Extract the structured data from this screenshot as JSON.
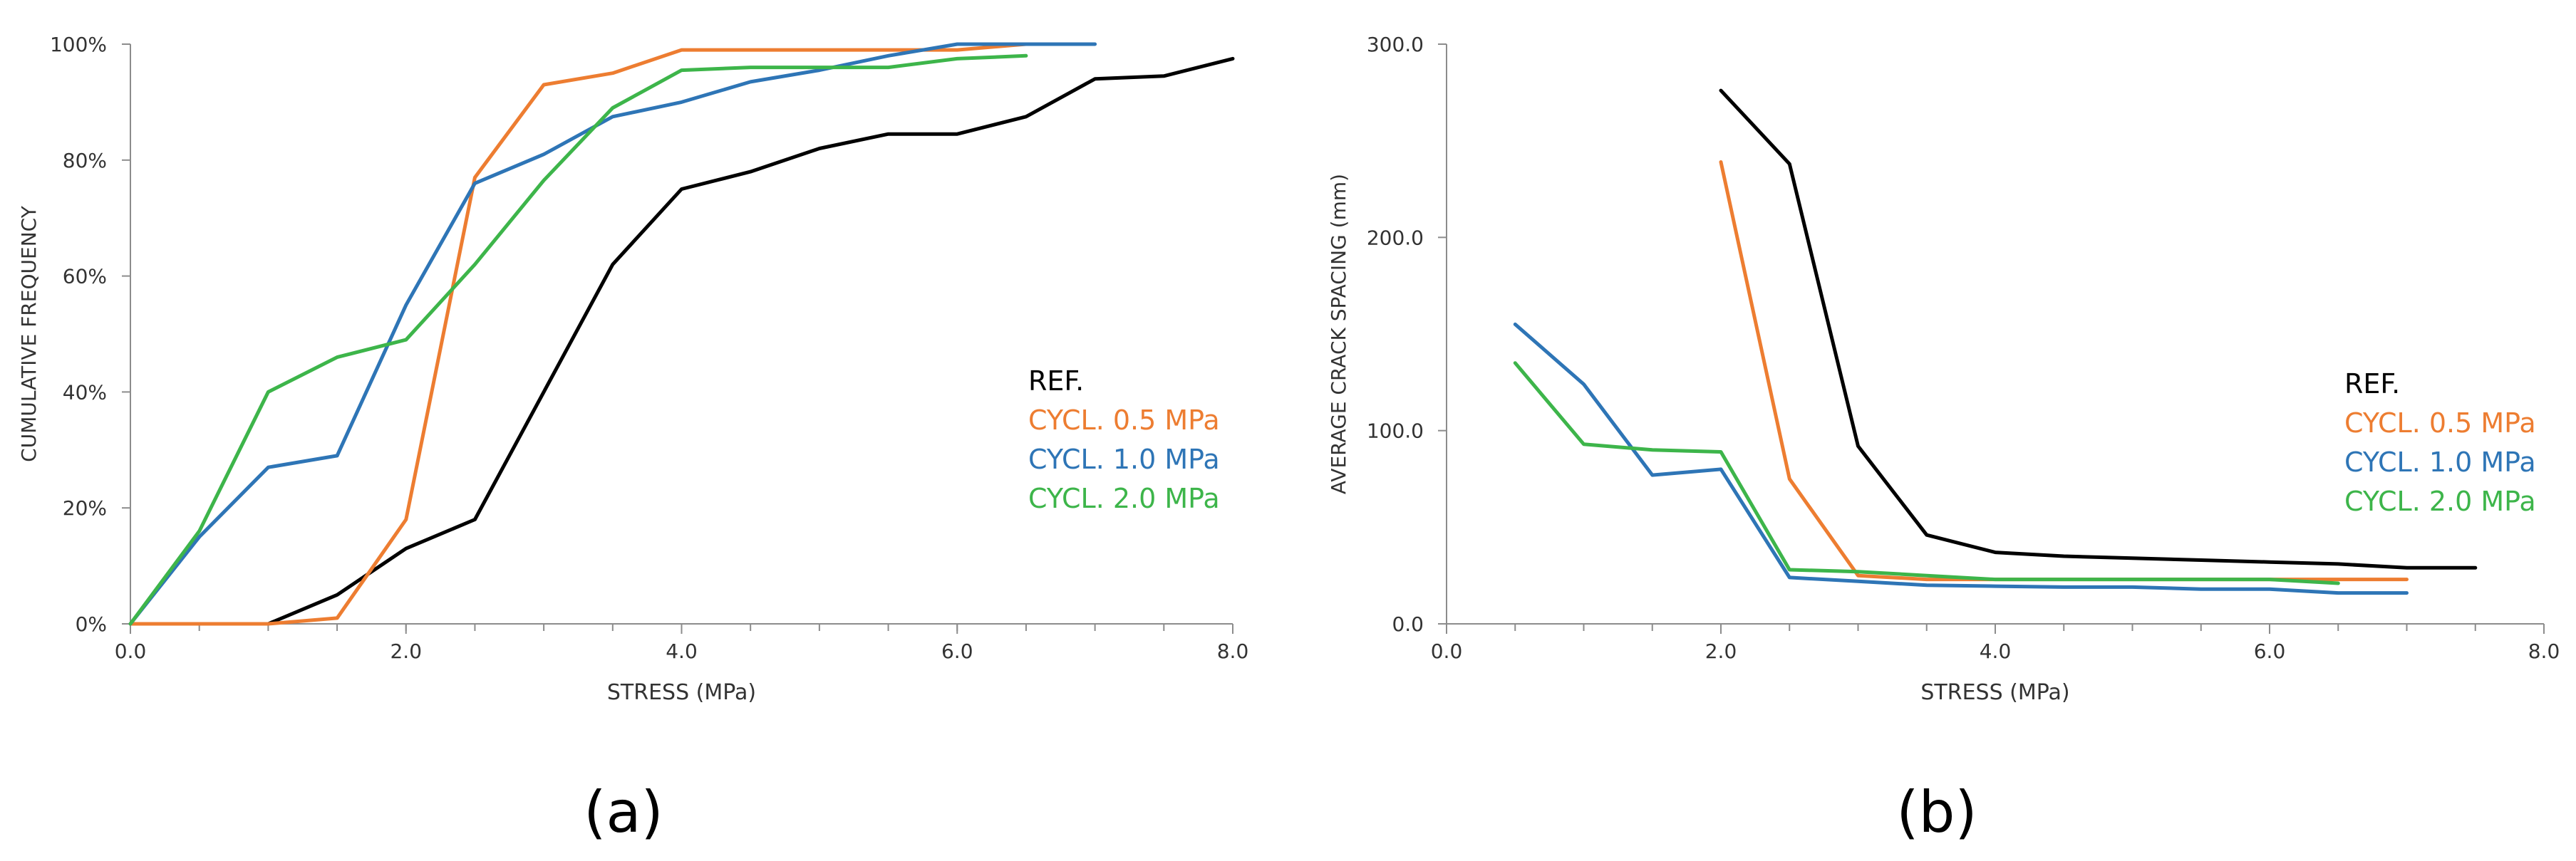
{
  "chart_data": [
    {
      "type": "line",
      "panel_label": "(a)",
      "xlabel": "STRESS (MPa)",
      "ylabel": "CUMULATIVE FREQUENCY",
      "xlim": [
        0,
        8
      ],
      "ylim": [
        0,
        100
      ],
      "xticks": [
        0,
        2,
        4,
        6,
        8
      ],
      "xtick_labels": [
        "0.0",
        "2.0",
        "4.0",
        "6.0",
        "8.0"
      ],
      "yticks": [
        0,
        20,
        40,
        60,
        80,
        100
      ],
      "ytick_labels": [
        "0%",
        "20%",
        "40%",
        "60%",
        "80%",
        "100%"
      ],
      "legend_position": "right",
      "series": [
        {
          "name": "REF.",
          "color": "#000000",
          "x": [
            1.0,
            1.5,
            2.0,
            2.5,
            3.0,
            3.5,
            4.0,
            4.5,
            5.0,
            5.5,
            6.0,
            6.5,
            7.0,
            7.5,
            8.0
          ],
          "y": [
            0,
            5,
            13,
            18,
            40,
            62,
            75,
            78,
            82,
            84.5,
            84.5,
            87.5,
            94,
            94.5,
            97.5
          ]
        },
        {
          "name": "CYCL. 0.5 MPa",
          "color": "#ED7D31",
          "x": [
            0.0,
            1.0,
            1.5,
            2.0,
            2.5,
            3.0,
            3.5,
            4.0,
            4.5,
            5.0,
            5.5,
            6.0,
            6.5
          ],
          "y": [
            0,
            0,
            1,
            18,
            77,
            93,
            95,
            99,
            99,
            99,
            99,
            99,
            100
          ]
        },
        {
          "name": "CYCL. 1.0 MPa",
          "color": "#2E75B6",
          "x": [
            0.0,
            0.5,
            1.0,
            1.5,
            2.0,
            2.5,
            3.0,
            3.5,
            4.0,
            4.5,
            5.0,
            5.5,
            6.0,
            6.5,
            7.0
          ],
          "y": [
            0,
            15,
            27,
            29,
            55,
            76,
            81,
            87.5,
            90,
            93.5,
            95.5,
            98,
            100,
            100,
            100
          ]
        },
        {
          "name": "CYCL. 2.0 MPa",
          "color": "#3DB54A",
          "x": [
            0.0,
            0.5,
            1.0,
            1.5,
            2.0,
            2.5,
            3.0,
            3.5,
            4.0,
            4.5,
            5.0,
            5.5,
            6.0,
            6.5
          ],
          "y": [
            0,
            16,
            40,
            46,
            49,
            62,
            76.5,
            89,
            95.5,
            96,
            96,
            96,
            97.5,
            98
          ]
        }
      ]
    },
    {
      "type": "line",
      "panel_label": "(b)",
      "xlabel": "STRESS (MPa)",
      "ylabel": "AVERAGE CRACK SPACING (mm)",
      "xlim": [
        0,
        8
      ],
      "ylim": [
        0,
        300
      ],
      "xticks": [
        0,
        2,
        4,
        6,
        8
      ],
      "xtick_labels": [
        "0.0",
        "2.0",
        "4.0",
        "6.0",
        "8.0"
      ],
      "yticks": [
        0,
        100,
        200,
        300
      ],
      "ytick_labels": [
        "0.0",
        "100.0",
        "200.0",
        "300.0"
      ],
      "legend_position": "right",
      "series": [
        {
          "name": "REF.",
          "color": "#000000",
          "x": [
            2.0,
            2.5,
            3.0,
            3.5,
            4.0,
            4.5,
            5.0,
            5.5,
            6.0,
            6.5,
            7.0,
            7.5
          ],
          "y": [
            276,
            238,
            92,
            46,
            37,
            35,
            34,
            33,
            32,
            31,
            29,
            29
          ]
        },
        {
          "name": "CYCL. 0.5 MPa",
          "color": "#ED7D31",
          "x": [
            2.0,
            2.5,
            3.0,
            3.5,
            4.0,
            4.5,
            5.0,
            5.5,
            6.0,
            6.5,
            7.0
          ],
          "y": [
            239,
            75,
            25,
            23,
            23,
            23,
            23,
            23,
            23,
            23,
            23
          ]
        },
        {
          "name": "CYCL. 1.0 MPa",
          "color": "#2E75B6",
          "x": [
            0.5,
            1.0,
            1.5,
            2.0,
            2.5,
            3.0,
            3.5,
            4.0,
            4.5,
            5.0,
            5.5,
            6.0,
            6.5,
            7.0
          ],
          "y": [
            155,
            124,
            77,
            80,
            24,
            22,
            20,
            19.5,
            19,
            19,
            18,
            18,
            16,
            16
          ]
        },
        {
          "name": "CYCL. 2.0 MPa",
          "color": "#3DB54A",
          "x": [
            0.5,
            1.0,
            1.5,
            2.0,
            2.5,
            3.0,
            3.5,
            4.0,
            4.5,
            5.0,
            5.5,
            6.0,
            6.5
          ],
          "y": [
            135,
            93,
            90,
            89,
            28,
            27,
            25,
            23,
            23,
            23,
            23,
            23,
            21
          ]
        }
      ]
    }
  ]
}
